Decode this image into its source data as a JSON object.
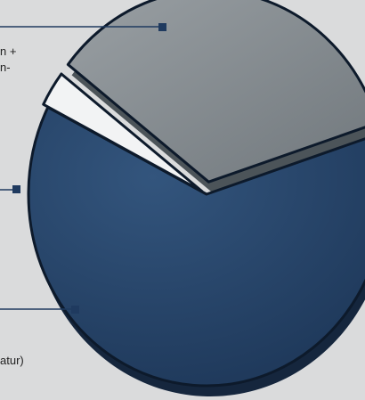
{
  "colors": {
    "background": "#dadbdc",
    "navy": "#223f63",
    "white": "#f2f3f4",
    "gray": "#858c91",
    "leader": "#1f3a5f"
  },
  "chart_data": {
    "type": "pie",
    "slices": [
      {
        "label_line1": "n +",
        "label_line2": "n-",
        "value": 62.5,
        "color": "#223f63"
      },
      {
        "label_line1": "",
        "label_line2": "",
        "value": 3.0,
        "color": "#f2f3f4"
      },
      {
        "label_line1": "atur)",
        "label_line2": "",
        "value": 34.5,
        "color": "#858c91"
      }
    ]
  }
}
